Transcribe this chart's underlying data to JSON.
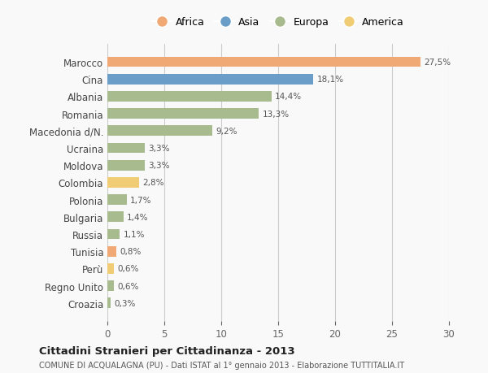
{
  "countries": [
    "Marocco",
    "Cina",
    "Albania",
    "Romania",
    "Macedonia d/N.",
    "Ucraina",
    "Moldova",
    "Colombia",
    "Polonia",
    "Bulgaria",
    "Russia",
    "Tunisia",
    "Perù",
    "Regno Unito",
    "Croazia"
  ],
  "values": [
    27.5,
    18.1,
    14.4,
    13.3,
    9.2,
    3.3,
    3.3,
    2.8,
    1.7,
    1.4,
    1.1,
    0.8,
    0.6,
    0.6,
    0.3
  ],
  "labels": [
    "27,5%",
    "18,1%",
    "14,4%",
    "13,3%",
    "9,2%",
    "3,3%",
    "3,3%",
    "2,8%",
    "1,7%",
    "1,4%",
    "1,1%",
    "0,8%",
    "0,6%",
    "0,6%",
    "0,3%"
  ],
  "continents": [
    "Africa",
    "Asia",
    "Europa",
    "Europa",
    "Europa",
    "Europa",
    "Europa",
    "America",
    "Europa",
    "Europa",
    "Europa",
    "Africa",
    "America",
    "Europa",
    "Europa"
  ],
  "colors": {
    "Africa": "#F0A875",
    "Asia": "#6A9EC9",
    "Europa": "#A8BB8F",
    "America": "#F0CC75"
  },
  "legend_order": [
    "Africa",
    "Asia",
    "Europa",
    "America"
  ],
  "xlim": [
    0,
    30
  ],
  "xticks": [
    0,
    5,
    10,
    15,
    20,
    25,
    30
  ],
  "title": "Cittadini Stranieri per Cittadinanza - 2013",
  "subtitle": "COMUNE DI ACQUALAGNA (PU) - Dati ISTAT al 1° gennaio 2013 - Elaborazione TUTTITALIA.IT",
  "background_color": "#f9f9f9"
}
